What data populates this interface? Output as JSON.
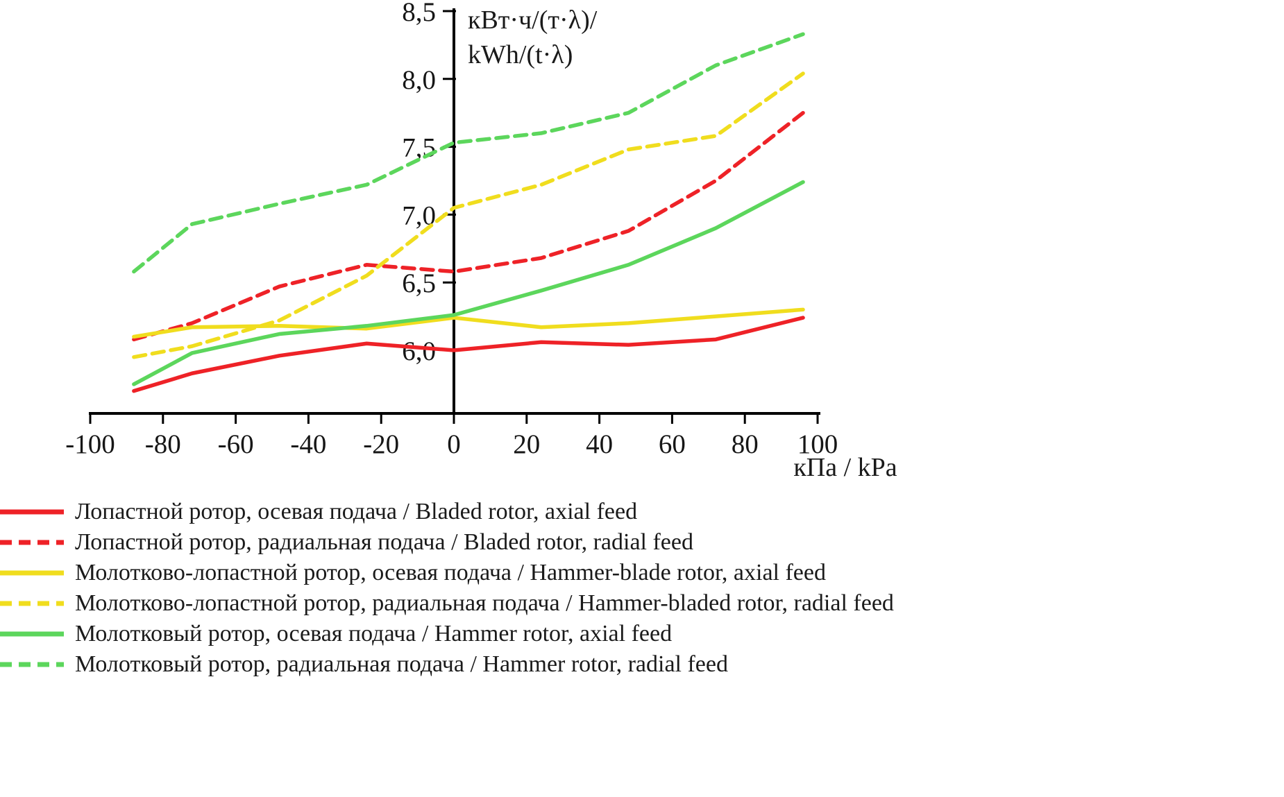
{
  "colors": {
    "axis": "#000000",
    "tick_text": "#161616",
    "red": "#ee2227",
    "yellow": "#f0dd1e",
    "green": "#5cd65c"
  },
  "chart_data": {
    "type": "line",
    "title": "",
    "xlabel": "кПа / kPa",
    "ylabel_line1": "кВт·ч/(т·λ)/",
    "ylabel_line2": "kWh/(t·λ)",
    "xlim": [
      -100,
      100
    ],
    "ylim": [
      5.54,
      8.5
    ],
    "grid": false,
    "legend_position": "bottom-left",
    "x_ticks": [
      -100,
      -80,
      -60,
      -40,
      -20,
      0,
      20,
      40,
      60,
      80,
      100
    ],
    "x_tick_labels": [
      "-100",
      "-80",
      "-60",
      "-40",
      "-20",
      "0",
      "20",
      "40",
      "60",
      "80",
      "100"
    ],
    "y_ticks": [
      6.0,
      6.5,
      7.0,
      7.5,
      8.0,
      8.5
    ],
    "y_tick_labels": [
      "6,0",
      "6,5",
      "7,0",
      "7,5",
      "8,0",
      "8,5"
    ],
    "x": [
      -88,
      -72,
      -48,
      -24,
      0,
      24,
      48,
      72,
      96
    ],
    "series": [
      {
        "name": "Лопастной ротор, осевая подача / Bladed rotor, axial feed",
        "color": "#ee2227",
        "style": "solid",
        "values": [
          5.7,
          5.83,
          5.96,
          6.05,
          6.0,
          6.06,
          6.04,
          6.08,
          6.24
        ]
      },
      {
        "name": "Лопастной ротор, радиальная подача / Bladed rotor, radial feed",
        "color": "#ee2227",
        "style": "dashed",
        "values": [
          6.08,
          6.2,
          6.47,
          6.63,
          6.58,
          6.68,
          6.88,
          7.25,
          7.75
        ]
      },
      {
        "name": "Молотково-лопастной ротор, осевая подача / Hammer-blade rotor, axial feed",
        "color": "#f0dd1e",
        "style": "solid",
        "values": [
          6.1,
          6.17,
          6.18,
          6.16,
          6.24,
          6.17,
          6.2,
          6.25,
          6.3
        ]
      },
      {
        "name": "Молотково-лопастной ротор, радиальная подача / Hammer-bladed rotor, radial feed",
        "color": "#f0dd1e",
        "style": "dashed",
        "values": [
          5.95,
          6.03,
          6.22,
          6.55,
          7.05,
          7.22,
          7.48,
          7.58,
          8.04
        ]
      },
      {
        "name": "Молотковый ротор, осевая подача / Hammer rotor, axial feed",
        "color": "#5cd65c",
        "style": "solid",
        "values": [
          5.75,
          5.98,
          6.12,
          6.18,
          6.26,
          6.44,
          6.63,
          6.9,
          7.24
        ]
      },
      {
        "name": "Молотковый ротор, радиальная подача / Hammer rotor, radial feed",
        "color": "#5cd65c",
        "style": "dashed",
        "values": [
          6.58,
          6.93,
          7.08,
          7.22,
          7.53,
          7.6,
          7.75,
          8.1,
          8.33
        ]
      }
    ]
  }
}
